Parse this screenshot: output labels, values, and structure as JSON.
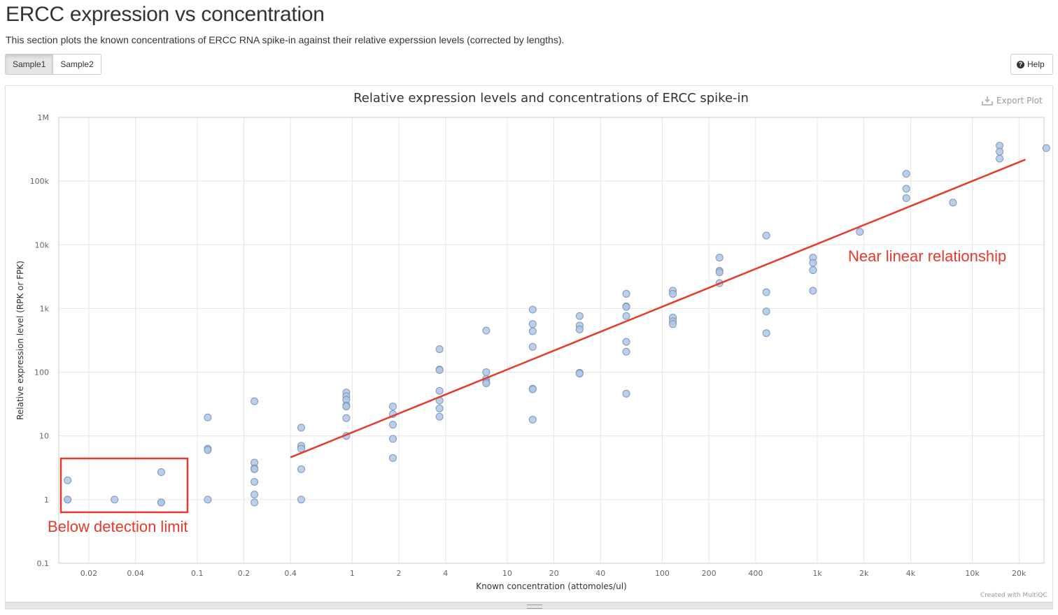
{
  "page": {
    "title": "ERCC expression vs concentration",
    "description": "This section plots the known concentrations of ERCC RNA spike-in against their relative experssion levels (corrected by lengths)."
  },
  "toolbar": {
    "samples": [
      {
        "label": "Sample1",
        "active": true
      },
      {
        "label": "Sample2",
        "active": false
      }
    ],
    "help_label": "Help",
    "help_icon": "question-circle-icon",
    "export_label": "Export Plot",
    "export_icon": "download-icon"
  },
  "footer": {
    "credit": "Created with MultiQC"
  },
  "annotations": {
    "below_detection": "Below detection limit",
    "near_linear": "Near linear relationship",
    "color": "#e8392a"
  },
  "chart_data": {
    "type": "scatter",
    "title": "Relative expression levels and concentrations of ERCC spike-in",
    "xlabel": "Known concentration (attomoles/ul)",
    "ylabel": "Relative expression level (RPK or FPK)",
    "xscale": "log",
    "yscale": "log",
    "xlim": [
      0.0128,
      29000
    ],
    "ylim": [
      0.1,
      1000000
    ],
    "grid": true,
    "point_color": "#aec7e8",
    "x_ticks": [
      {
        "value": 0.02,
        "label": "0.02"
      },
      {
        "value": 0.04,
        "label": "0.04"
      },
      {
        "value": 0.1,
        "label": "0.1"
      },
      {
        "value": 0.2,
        "label": "0.2"
      },
      {
        "value": 0.4,
        "label": "0.4"
      },
      {
        "value": 1,
        "label": "1"
      },
      {
        "value": 2,
        "label": "2"
      },
      {
        "value": 4,
        "label": "4"
      },
      {
        "value": 10,
        "label": "10"
      },
      {
        "value": 20,
        "label": "20"
      },
      {
        "value": 40,
        "label": "40"
      },
      {
        "value": 100,
        "label": "100"
      },
      {
        "value": 200,
        "label": "200"
      },
      {
        "value": 400,
        "label": "400"
      },
      {
        "value": 1000,
        "label": "1k"
      },
      {
        "value": 2000,
        "label": "2k"
      },
      {
        "value": 4000,
        "label": "4k"
      },
      {
        "value": 10000,
        "label": "10k"
      },
      {
        "value": 20000,
        "label": "20k"
      }
    ],
    "y_ticks": [
      {
        "value": 0.1,
        "label": "0.1"
      },
      {
        "value": 1,
        "label": "1"
      },
      {
        "value": 10,
        "label": "10"
      },
      {
        "value": 100,
        "label": "100"
      },
      {
        "value": 1000,
        "label": "1k"
      },
      {
        "value": 10000,
        "label": "10k"
      },
      {
        "value": 100000,
        "label": "100k"
      },
      {
        "value": 1000000,
        "label": "1M"
      }
    ],
    "points": [
      [
        0.0146,
        2.0
      ],
      [
        0.0146,
        1.0
      ],
      [
        0.0146,
        1.0
      ],
      [
        0.0293,
        1.0
      ],
      [
        0.0586,
        2.7
      ],
      [
        0.0586,
        0.9
      ],
      [
        0.0586,
        0.9
      ],
      [
        0.117,
        19.5
      ],
      [
        0.117,
        6.3
      ],
      [
        0.117,
        6.0
      ],
      [
        0.117,
        1.0
      ],
      [
        0.234,
        35
      ],
      [
        0.234,
        3.8
      ],
      [
        0.234,
        3.1
      ],
      [
        0.234,
        3.0
      ],
      [
        0.234,
        1.9
      ],
      [
        0.234,
        1.2
      ],
      [
        0.234,
        0.9
      ],
      [
        0.469,
        13.5
      ],
      [
        0.469,
        7.0
      ],
      [
        0.469,
        6.3
      ],
      [
        0.469,
        3.0
      ],
      [
        0.469,
        1.0
      ],
      [
        0.916,
        48
      ],
      [
        0.916,
        42
      ],
      [
        0.916,
        37
      ],
      [
        0.916,
        30
      ],
      [
        0.916,
        29
      ],
      [
        0.916,
        19
      ],
      [
        0.916,
        10
      ],
      [
        1.83,
        29
      ],
      [
        1.83,
        22
      ],
      [
        1.83,
        15
      ],
      [
        1.83,
        9
      ],
      [
        1.83,
        4.5
      ],
      [
        3.66,
        230
      ],
      [
        3.66,
        110
      ],
      [
        3.66,
        108
      ],
      [
        3.66,
        51
      ],
      [
        3.66,
        36
      ],
      [
        3.66,
        27
      ],
      [
        3.66,
        20
      ],
      [
        7.32,
        450
      ],
      [
        7.32,
        100
      ],
      [
        7.32,
        78
      ],
      [
        7.32,
        70
      ],
      [
        7.32,
        67
      ],
      [
        14.6,
        960
      ],
      [
        14.6,
        570
      ],
      [
        14.6,
        440
      ],
      [
        14.6,
        250
      ],
      [
        14.6,
        55
      ],
      [
        14.6,
        54
      ],
      [
        14.6,
        18
      ],
      [
        29.3,
        760
      ],
      [
        29.3,
        540
      ],
      [
        29.3,
        470
      ],
      [
        29.3,
        98
      ],
      [
        29.3,
        95
      ],
      [
        58.6,
        1700
      ],
      [
        58.6,
        1080
      ],
      [
        58.6,
        1060
      ],
      [
        58.6,
        760
      ],
      [
        58.6,
        300
      ],
      [
        58.6,
        210
      ],
      [
        58.6,
        46
      ],
      [
        117,
        1900
      ],
      [
        117,
        1700
      ],
      [
        117,
        720
      ],
      [
        117,
        630
      ],
      [
        117,
        570
      ],
      [
        234,
        6300
      ],
      [
        234,
        3900
      ],
      [
        234,
        3700
      ],
      [
        234,
        2500
      ],
      [
        469,
        14000
      ],
      [
        469,
        1800
      ],
      [
        469,
        900
      ],
      [
        469,
        410
      ],
      [
        938,
        6300
      ],
      [
        938,
        5200
      ],
      [
        938,
        4000
      ],
      [
        938,
        1900
      ],
      [
        1880,
        16000
      ],
      [
        3750,
        130000
      ],
      [
        3750,
        76000
      ],
      [
        3750,
        54000
      ],
      [
        7500,
        46000
      ],
      [
        15000,
        360000
      ],
      [
        15000,
        290000
      ],
      [
        15000,
        225000
      ],
      [
        30000,
        330000
      ]
    ],
    "fit_line": {
      "x": [
        0.4,
        22000
      ],
      "y": [
        4.6,
        218000
      ],
      "color": "#e8392a"
    }
  }
}
